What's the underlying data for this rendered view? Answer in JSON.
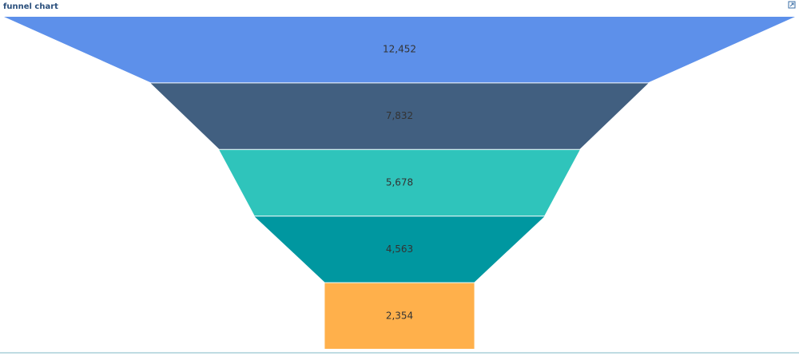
{
  "chart_data": {
    "type": "funnel",
    "title": "funnel chart",
    "values": [
      12452,
      7832,
      5678,
      4563,
      2354
    ],
    "value_labels": [
      "12,452",
      "7,832",
      "5,678",
      "4,563",
      "2,354"
    ],
    "colors": [
      "#5d90ea",
      "#415f80",
      "#2fc4bb",
      "#0097a0",
      "#ffb04b"
    ]
  }
}
